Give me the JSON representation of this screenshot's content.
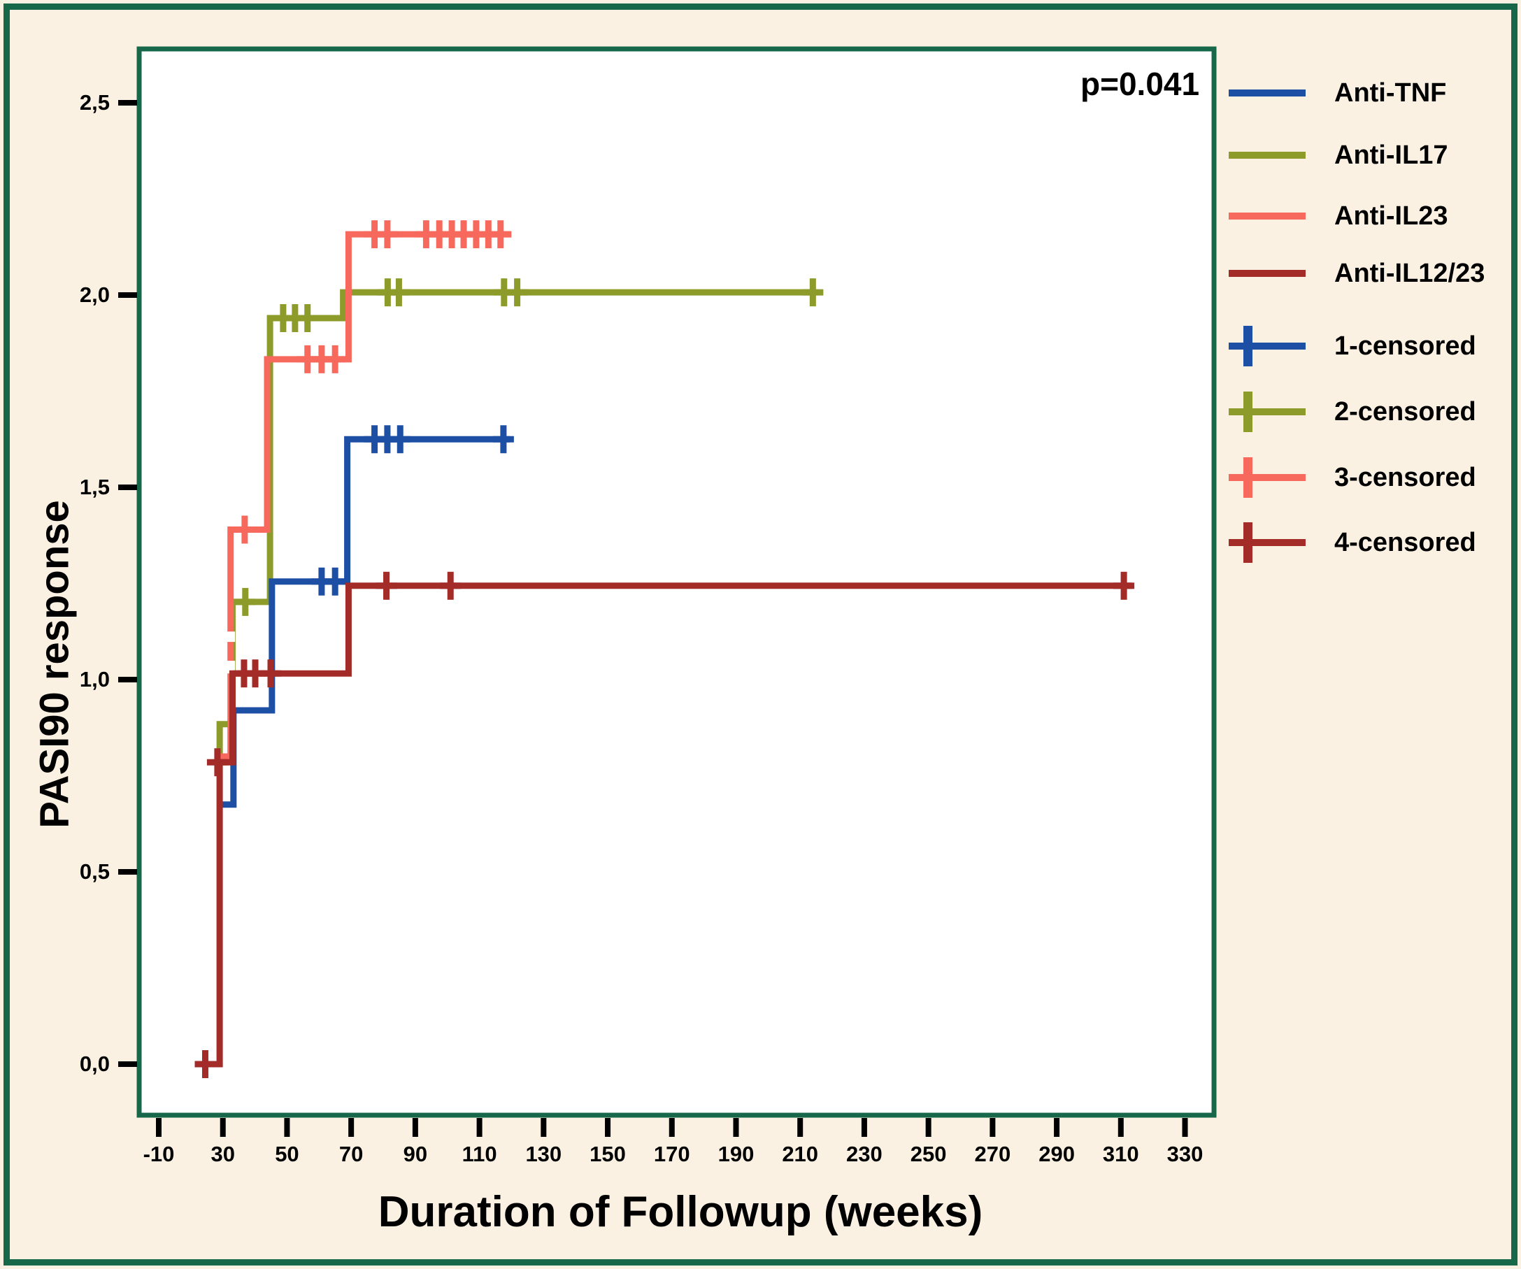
{
  "figure": {
    "p_value": "p=0.041",
    "x_title": "Duration of Followup (weeks)",
    "y_title": "PASI90 response",
    "background_color": "#FAF1E2",
    "frame_color": "#17684A",
    "plot_background": "#FFFFFF",
    "tick_color": "#000000"
  },
  "chart_data": {
    "type": "line",
    "subtype": "kaplan-meier-step",
    "title": "",
    "xlabel": "Duration of Followup (weeks)",
    "ylabel": "PASI90 response",
    "annotation": "p=0.041",
    "x_tick_labels": [
      "-10",
      "30",
      "50",
      "70",
      "90",
      "110",
      "130",
      "150",
      "170",
      "190",
      "210",
      "230",
      "250",
      "270",
      "290",
      "310",
      "330"
    ],
    "y_tick_labels": [
      "0,0",
      "0,5",
      "1,0",
      "1,5",
      "2,0",
      "2,5"
    ],
    "y_tick_values": [
      0.0,
      0.5,
      1.0,
      1.5,
      2.0,
      2.5
    ],
    "xlim": [
      -36,
      339
    ],
    "ylim": [
      -0.13,
      2.64
    ],
    "grid": false,
    "legend_position": "right-outside",
    "series": [
      {
        "name": "Anti-IL17",
        "legend_label": "Anti-IL17",
        "censored_label": "2-censored",
        "color": "#8C9B2A",
        "step_points": [
          [
            28.0,
            0.816
          ],
          [
            29.0,
            0.816
          ],
          [
            29.0,
            0.884
          ],
          [
            33.0,
            0.884
          ],
          [
            33.0,
            1.202
          ],
          [
            44.7,
            1.202
          ],
          [
            44.7,
            1.94
          ],
          [
            67.5,
            1.94
          ],
          [
            67.5,
            2.007
          ],
          [
            215.5,
            2.007
          ]
        ],
        "censor_points": [
          [
            37.0,
            1.202
          ],
          [
            48.8,
            1.94
          ],
          [
            52.5,
            1.94
          ],
          [
            56.4,
            1.94
          ],
          [
            81.4,
            2.007
          ],
          [
            84.9,
            2.007
          ],
          [
            117.7,
            2.007
          ],
          [
            121.8,
            2.007
          ],
          [
            214.0,
            2.007
          ]
        ]
      },
      {
        "name": "Anti-IL23",
        "legend_label": "Anti-IL23",
        "censored_label": "3-censored",
        "color": "#F7695C",
        "step_points": [
          [
            29.2,
            0.8
          ],
          [
            32.4,
            0.8
          ],
          [
            32.4,
            1.39
          ],
          [
            43.8,
            1.39
          ],
          [
            43.8,
            1.833
          ],
          [
            69.2,
            1.833
          ],
          [
            69.2,
            2.158
          ],
          [
            120.0,
            2.158
          ]
        ],
        "censor_points": [
          [
            36.8,
            1.39
          ],
          [
            56.4,
            1.833
          ],
          [
            60.8,
            1.833
          ],
          [
            65.0,
            1.833
          ],
          [
            77.3,
            2.158
          ],
          [
            81.3,
            2.158
          ],
          [
            93.4,
            2.158
          ],
          [
            97.5,
            2.158
          ],
          [
            101.4,
            2.158
          ],
          [
            105.1,
            2.158
          ],
          [
            109.0,
            2.158
          ],
          [
            112.8,
            2.158
          ],
          [
            116.6,
            2.158
          ]
        ],
        "gap_segments": [
          [
            32.4,
            1.016,
            1.049
          ],
          [
            32.4,
            1.098,
            1.125
          ]
        ]
      },
      {
        "name": "Anti-TNF",
        "legend_label": "Anti-TNF",
        "censored_label": "1-censored",
        "color": "#1D4FA5",
        "step_points": [
          [
            28.8,
            0.675
          ],
          [
            33.3,
            0.675
          ],
          [
            33.3,
            0.92
          ],
          [
            45.3,
            0.92
          ],
          [
            45.3,
            1.255
          ],
          [
            68.8,
            1.255
          ],
          [
            68.8,
            1.625
          ],
          [
            119.5,
            1.625
          ]
        ],
        "censor_points": [
          [
            60.8,
            1.255
          ],
          [
            65.0,
            1.255
          ],
          [
            77.3,
            1.625
          ],
          [
            81.3,
            1.625
          ],
          [
            85.3,
            1.625
          ],
          [
            117.5,
            1.625
          ]
        ]
      },
      {
        "name": "Anti-IL12/23",
        "legend_label": "Anti-IL12/23",
        "censored_label": "4-censored",
        "color": "#A32B28",
        "step_points": [
          [
            23.8,
            0.0
          ],
          [
            29.0,
            0.0
          ],
          [
            29.0,
            0.785
          ],
          [
            33.0,
            0.785
          ],
          [
            33.0,
            1.016
          ],
          [
            69.2,
            1.016
          ],
          [
            69.2,
            1.244
          ],
          [
            313.5,
            1.244
          ]
        ],
        "censor_points": [
          [
            24.5,
            0.0
          ],
          [
            28.3,
            0.785
          ],
          [
            36.6,
            1.016
          ],
          [
            40.1,
            1.016
          ],
          [
            44.9,
            1.016
          ],
          [
            81.0,
            1.244
          ],
          [
            101.0,
            1.244
          ],
          [
            311.0,
            1.244
          ]
        ]
      }
    ]
  },
  "legend": {
    "line_order": [
      "Anti-TNF",
      "Anti-IL17",
      "Anti-IL23",
      "Anti-IL12/23"
    ],
    "censored_order": [
      "1-censored",
      "2-censored",
      "3-censored",
      "4-censored"
    ]
  }
}
